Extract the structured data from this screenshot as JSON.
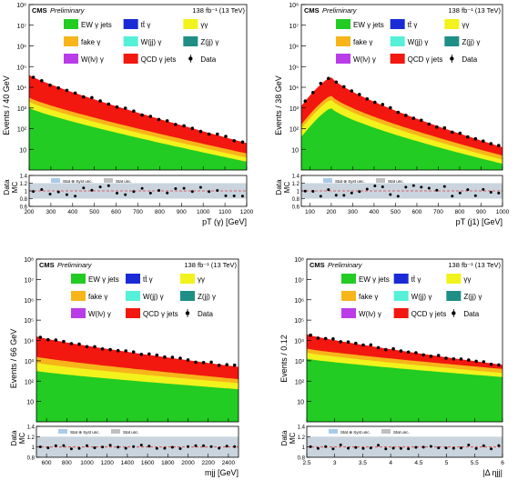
{
  "header": {
    "experiment": "CMS",
    "status": "Preliminary",
    "lumi": "138 fb⁻¹ (13 TeV)"
  },
  "legend_entries": [
    {
      "key": "ew",
      "label": "EW γ jets",
      "color": "#22cc22",
      "kind": "box"
    },
    {
      "key": "ttg",
      "label": "tt̄ γ",
      "color": "#1a2bd6",
      "kind": "box"
    },
    {
      "key": "gg",
      "label": "γγ",
      "color": "#f2f21c",
      "kind": "box"
    },
    {
      "key": "fake",
      "label": "fake γ",
      "color": "#f7b51a",
      "kind": "box"
    },
    {
      "key": "wjj",
      "label": "W(jj) γ",
      "color": "#55f0d8",
      "kind": "box"
    },
    {
      "key": "zjj",
      "label": "Z(jj) γ",
      "color": "#1f8f86",
      "kind": "box"
    },
    {
      "key": "wlnu",
      "label": "W(lν) γ",
      "color": "#b93ce8",
      "kind": "box"
    },
    {
      "key": "qcd",
      "label": "QCD γ jets",
      "color": "#f2170f",
      "kind": "box"
    },
    {
      "key": "data",
      "label": "Data",
      "color": "#000000",
      "kind": "marker"
    }
  ],
  "ratio_legend": {
    "stat_syst": "Stat ⊕ Syst unc.",
    "stat": "Stat unc."
  },
  "chart_data": [
    {
      "type": "area",
      "ylabel": "Events / 40 GeV",
      "xlabel": "pT (γ) [GeV]",
      "ratio_ylabel_top": "Data",
      "ratio_ylabel_bottom": "MC",
      "xlim": [
        200,
        1200
      ],
      "ylim_log10": [
        0,
        8
      ],
      "x_ticks": [
        "200",
        "300",
        "400",
        "500",
        "600",
        "700",
        "800",
        "900",
        "1000",
        "1100",
        "1200"
      ],
      "y_ticks": [
        "10",
        "10²",
        "10³",
        "10⁴",
        "10⁵",
        "10⁶",
        "10⁷",
        "10⁸"
      ],
      "ratio_ylim": [
        0.6,
        1.4
      ],
      "ratio_ticks": [
        "0.6",
        "0.8",
        "1",
        "1.2",
        "1.4"
      ],
      "stack_log10": {
        "ew": [
          3.0,
          0.4
        ],
        "gg": [
          3.3,
          0.6
        ],
        "fake": [
          3.5,
          0.8
        ],
        "qcd": [
          4.6,
          1.3
        ]
      },
      "data_log10": [
        4.6,
        1.3
      ]
    },
    {
      "type": "area",
      "ylabel": "Events / 38 GeV",
      "xlabel": "pT (j1) [GeV]",
      "ratio_ylabel_top": "Data",
      "ratio_ylabel_bottom": "MC",
      "xlim": [
        60,
        1000
      ],
      "ylim_log10": [
        0,
        8
      ],
      "x_ticks": [
        "100",
        "200",
        "300",
        "400",
        "500",
        "600",
        "700",
        "800",
        "900",
        "1000"
      ],
      "y_ticks": [
        "10",
        "10²",
        "10³",
        "10⁴",
        "10⁵",
        "10⁶",
        "10⁷",
        "10⁸"
      ],
      "ratio_ylim": [
        0.6,
        1.4
      ],
      "ratio_ticks": [
        "0.6",
        "0.8",
        "1",
        "1.2",
        "1.4"
      ],
      "peak_x": 200,
      "stack_log10": {
        "ew": [
          3.0,
          0.3
        ],
        "gg": [
          3.4,
          0.5
        ],
        "fake": [
          3.6,
          0.7
        ],
        "qcd": [
          4.5,
          1.1
        ]
      },
      "data_log10": [
        4.5,
        1.1
      ]
    },
    {
      "type": "area",
      "ylabel": "Events / 66 GeV",
      "xlabel": "mjj [GeV]",
      "ratio_ylabel_top": "Data",
      "ratio_ylabel_bottom": "MC",
      "xlim": [
        500,
        2500
      ],
      "ylim_log10": [
        0,
        8
      ],
      "x_ticks": [
        "600",
        "800",
        "1000",
        "1200",
        "1400",
        "1600",
        "1800",
        "2000",
        "2200",
        "2400"
      ],
      "y_ticks": [
        "10",
        "10²",
        "10³",
        "10⁴",
        "10⁵",
        "10⁶",
        "10⁷",
        "10⁸"
      ],
      "ratio_ylim": [
        0.8,
        1.4
      ],
      "ratio_ticks": [
        "0.8",
        "1",
        "1.2",
        "1.4"
      ],
      "stack_log10": {
        "ew": [
          2.5,
          1.6
        ],
        "gg": [
          2.9,
          1.9
        ],
        "fake": [
          3.2,
          2.1
        ],
        "qcd": [
          4.2,
          2.7
        ]
      },
      "data_log10": [
        4.2,
        2.7
      ]
    },
    {
      "type": "area",
      "ylabel": "Events / 0.12",
      "xlabel": "|Δ ηjj|",
      "ratio_ylabel_top": "Data",
      "ratio_ylabel_bottom": "MC",
      "xlim": [
        2.5,
        6
      ],
      "ylim_log10": [
        0,
        8
      ],
      "x_ticks": [
        "2.5",
        "3",
        "3.5",
        "4",
        "4.5",
        "5",
        "5.5",
        "6"
      ],
      "y_ticks": [
        "10",
        "10²",
        "10³",
        "10⁴",
        "10⁵",
        "10⁶",
        "10⁷",
        "10⁸"
      ],
      "ratio_ylim": [
        0.8,
        1.4
      ],
      "ratio_ticks": [
        "0.8",
        "1",
        "1.2",
        "1.4"
      ],
      "stack_log10": {
        "ew": [
          3.1,
          2.2
        ],
        "gg": [
          3.4,
          2.4
        ],
        "fake": [
          3.6,
          2.6
        ],
        "qcd": [
          4.3,
          2.8
        ]
      },
      "data_log10": [
        4.3,
        2.8
      ]
    }
  ]
}
